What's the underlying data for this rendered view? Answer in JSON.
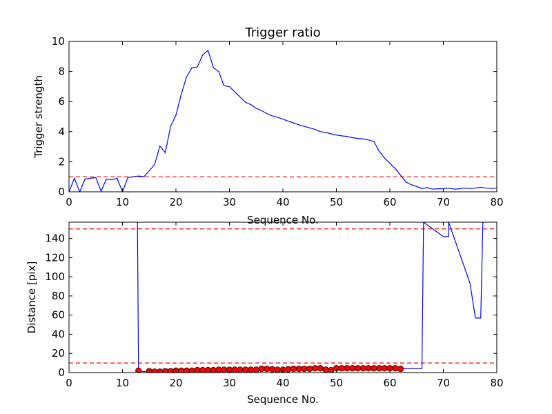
{
  "chart_data": [
    {
      "type": "line",
      "title": "Trigger ratio",
      "xlabel": "Sequence No.",
      "ylabel": "Trigger strength",
      "xlim": [
        0,
        80
      ],
      "ylim": [
        0,
        10
      ],
      "xticks": [
        0,
        10,
        20,
        30,
        40,
        50,
        60,
        70,
        80
      ],
      "yticks": [
        0,
        2,
        4,
        6,
        8,
        10
      ],
      "grid": false,
      "series": [
        {
          "color": "#0000ff",
          "x": [
            0,
            1,
            2,
            3,
            4,
            5,
            6,
            7,
            8,
            9,
            10,
            11,
            12,
            13,
            14,
            15,
            16,
            17,
            18,
            19,
            20,
            21,
            22,
            23,
            24,
            25,
            26,
            27,
            28,
            29,
            30,
            31,
            32,
            33,
            34,
            35,
            36,
            37,
            38,
            39,
            40,
            41,
            42,
            43,
            44,
            45,
            46,
            47,
            48,
            49,
            50,
            51,
            52,
            53,
            54,
            55,
            56,
            57,
            58,
            59,
            60,
            61,
            62,
            63,
            64,
            65,
            66,
            67,
            68,
            69,
            70,
            71,
            72,
            73,
            74,
            75,
            76,
            77,
            78,
            79,
            80
          ],
          "y": [
            0.0,
            0.9,
            0.0,
            0.85,
            0.9,
            0.95,
            0.05,
            0.85,
            0.8,
            0.9,
            0.0,
            0.95,
            1.0,
            1.05,
            1.0,
            1.4,
            1.8,
            3.05,
            2.6,
            4.35,
            5.1,
            6.5,
            7.65,
            8.25,
            8.3,
            9.1,
            9.4,
            8.25,
            8.0,
            7.05,
            7.0,
            6.65,
            6.3,
            5.95,
            5.8,
            5.55,
            5.4,
            5.2,
            5.05,
            4.95,
            4.83,
            4.7,
            4.58,
            4.45,
            4.35,
            4.25,
            4.15,
            4.0,
            3.95,
            3.85,
            3.78,
            3.72,
            3.68,
            3.6,
            3.55,
            3.52,
            3.45,
            3.35,
            2.7,
            2.25,
            1.9,
            1.55,
            1.1,
            0.65,
            0.48,
            0.35,
            0.22,
            0.28,
            0.18,
            0.2,
            0.2,
            0.25,
            0.18,
            0.2,
            0.25,
            0.22,
            0.25,
            0.3,
            0.25,
            0.22,
            0.25
          ]
        }
      ],
      "reference_lines": [
        {
          "y": 1.0,
          "color": "#ff0000",
          "style": "dashed"
        }
      ]
    },
    {
      "type": "line",
      "title": "",
      "xlabel": "Sequence No.",
      "ylabel": "Distance [pix]",
      "xlim": [
        0,
        80
      ],
      "ylim": [
        0,
        157
      ],
      "xticks": [
        0,
        10,
        20,
        30,
        40,
        50,
        60,
        70,
        80
      ],
      "yticks": [
        0,
        20,
        40,
        60,
        80,
        100,
        120,
        140
      ],
      "grid": false,
      "series": [
        {
          "color": "#0000ff",
          "x": [
            12.8,
            13,
            14,
            15,
            16,
            17,
            18,
            19,
            20,
            21,
            22,
            23,
            24,
            25,
            26,
            27,
            28,
            29,
            30,
            31,
            32,
            33,
            34,
            35,
            36,
            37,
            38,
            39,
            40,
            41,
            42,
            43,
            44,
            45,
            46,
            47,
            48,
            49,
            50,
            51,
            52,
            53,
            54,
            55,
            56,
            57,
            58,
            59,
            60,
            61,
            62,
            63,
            64,
            65,
            66,
            66.3,
            70,
            71,
            71,
            75,
            76,
            77,
            77.4
          ],
          "y": [
            157,
            2,
            1,
            1.5,
            1,
            1,
            1.5,
            1.5,
            2,
            2,
            2,
            2,
            2.5,
            2.5,
            2.5,
            2.5,
            3,
            3,
            3,
            3,
            3,
            3,
            3,
            3,
            3.5,
            3.5,
            3.5,
            3,
            3,
            3.5,
            4,
            4,
            4,
            4,
            4,
            4,
            4,
            4,
            4.5,
            4.5,
            4.5,
            4.5,
            4.5,
            4.5,
            4.5,
            4.5,
            4.5,
            4.5,
            4.5,
            4.5,
            4.5,
            4,
            4,
            4,
            4,
            157,
            142,
            142,
            157,
            93,
            57,
            57,
            157
          ]
        },
        {
          "color": "#ff0000",
          "marker": "circle",
          "x": [
            13,
            15,
            16,
            17,
            18,
            19,
            20,
            21,
            22,
            23,
            24,
            25,
            26,
            27,
            28,
            29,
            30,
            31,
            32,
            33,
            34,
            35,
            36,
            37,
            38,
            39,
            40,
            41,
            42,
            43,
            44,
            45,
            46,
            47,
            48,
            49,
            50,
            51,
            52,
            53,
            54,
            55,
            56,
            57,
            58,
            59,
            60,
            61,
            62
          ],
          "y": [
            2,
            1.5,
            1,
            1,
            1.5,
            1.5,
            2,
            2,
            2,
            2,
            2.5,
            2.5,
            2.5,
            2.5,
            3,
            3,
            3,
            3,
            3,
            3,
            3,
            3,
            4,
            4,
            3.5,
            3,
            3,
            3.5,
            4,
            4,
            4,
            4,
            4.5,
            4.5,
            3,
            2.5,
            4.5,
            4.5,
            4.5,
            4.5,
            4.5,
            4.5,
            4.5,
            4.5,
            4.5,
            4.5,
            4.5,
            4.5,
            4
          ]
        }
      ],
      "reference_lines": [
        {
          "y": 10,
          "color": "#ff0000",
          "style": "dashed"
        },
        {
          "y": 150,
          "color": "#ff0000",
          "style": "dashed"
        }
      ]
    }
  ]
}
